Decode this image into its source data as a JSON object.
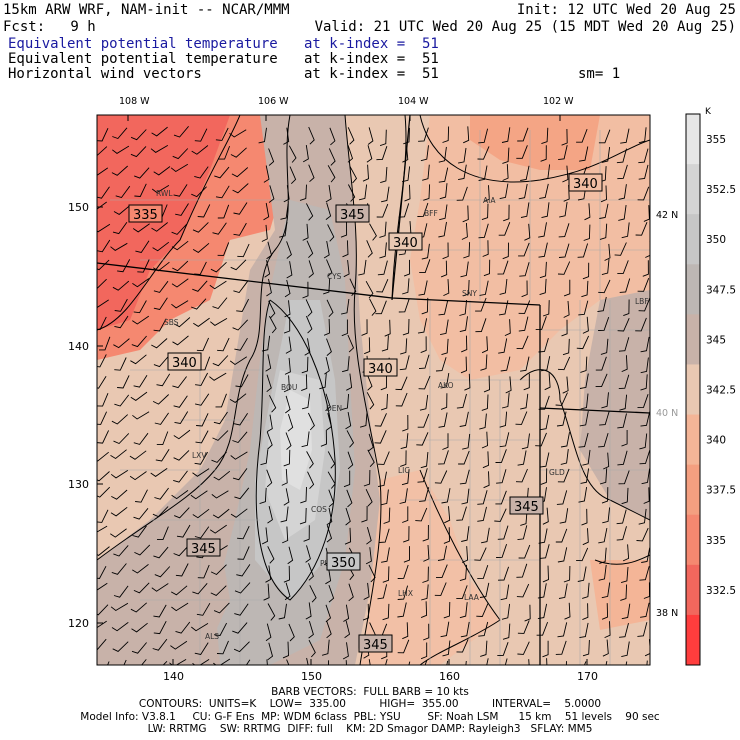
{
  "header": {
    "line1_left": "15km ARW WRF, NAM-init -- NCAR/MMM",
    "line1_right": "Init: 12 UTC Wed 20 Aug 25",
    "line2_left": "Fcst:   9 h",
    "line2_right": "Valid: 21 UTC Wed 20 Aug 25 (15 MDT Wed 20 Aug 25)",
    "fields": [
      {
        "name": "Equivalent potential temperature",
        "level": "at k-index =  51",
        "extra": ""
      },
      {
        "name": "Equivalent potential temperature",
        "level": "at k-index =  51",
        "extra": ""
      },
      {
        "name": "Horizontal wind vectors",
        "level": "at k-index =  51",
        "extra": "sm= 1"
      }
    ]
  },
  "map": {
    "top_lon_labels": [
      "108 W",
      "106 W",
      "104 W",
      "102 W"
    ],
    "right_lat_labels": [
      "42 N",
      "40 N",
      "38 N"
    ],
    "left_axis_ticks": [
      "150",
      "140",
      "130",
      "120"
    ],
    "bottom_axis_ticks": [
      "140",
      "150",
      "160",
      "170"
    ],
    "stations": [
      "RWL",
      "BFF",
      "AIA",
      "CYS",
      "SNY",
      "LBF",
      "SBS",
      "BOU",
      "DEN",
      "AKO",
      "LXV",
      "LIC",
      "GLD",
      "COS",
      "PUB",
      "LHX",
      "LAA",
      "ALS"
    ],
    "contour_labels": [
      "335",
      "345",
      "340",
      "340",
      "340",
      "340",
      "345",
      "345",
      "350",
      "345"
    ]
  },
  "colorbar": {
    "unit": "K",
    "labels": [
      "355",
      "352.5",
      "350",
      "347.5",
      "345",
      "342.5",
      "340",
      "337.5",
      "335",
      "332.5"
    ],
    "colors": [
      "#e6e6e6",
      "#d4d4d4",
      "#c6c6c6",
      "#bdb7b4",
      "#c8b2a9",
      "#e9c8b2",
      "#f4b597",
      "#f49f80",
      "#f58870",
      "#f2675d",
      "#ff3d3d"
    ]
  },
  "footer": {
    "barb_line": "BARB VECTORS:  FULL BARB = 10 kts",
    "contours_line": "CONTOURS:  UNITS=K    LOW=  335.00          HIGH=  355.00          INTERVAL=    5.0000",
    "model_line1": "Model Info: V3.8.1     CU: G-F Ens  MP: WDM 6class  PBL: YSU        SF: Noah LSM      15 km    51 levels    90 sec",
    "model_line2": "LW: RRTMG    SW: RRTMG  DIFF: full    KM: 2D Smagor DAMP: Rayleigh3   SFLAY: MM5"
  }
}
